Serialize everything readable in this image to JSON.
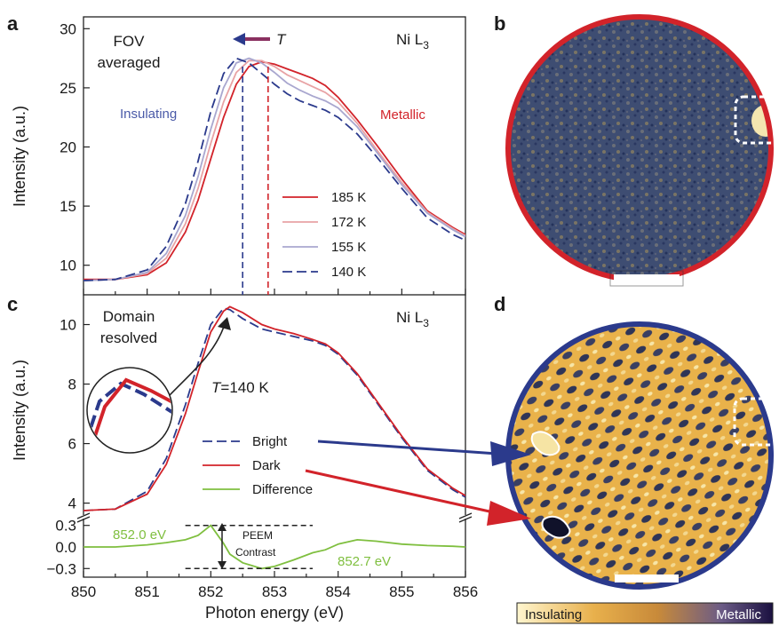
{
  "panel_labels": {
    "a": "a",
    "b": "b",
    "c": "c",
    "d": "d"
  },
  "panel_a": {
    "annotations": {
      "fov_line1": "FOV",
      "fov_line2": "averaged",
      "temp_arrow": "T",
      "edge_pre": "Ni L",
      "edge_sub": "3",
      "insulating": "Insulating",
      "metallic": "Metallic"
    },
    "colors": {
      "185": "#d2232a",
      "172": "#e8a3a5",
      "155": "#a9a7cf",
      "140": "#2b3a8c"
    }
  },
  "panel_c": {
    "annotations": {
      "dom_line1": "Domain",
      "dom_line2": "resolved",
      "edge_pre": "Ni L",
      "edge_sub": "3",
      "temp_pre": "T",
      "temp_rest": "=140 K",
      "peak_left": "852.0 eV",
      "peak_right": "852.7 eV",
      "peem1": "PEEM",
      "peem2": "Contrast"
    },
    "colors": {
      "bright": "#2b3a8c",
      "dark": "#d2232a",
      "difference": "#7fbf3f"
    }
  },
  "colorbar": {
    "left_label": "Insulating",
    "right_label": "Metallic"
  },
  "chart_data": [
    {
      "type": "line",
      "panel": "a",
      "xlim": [
        850,
        856
      ],
      "ylim": [
        7.5,
        31
      ],
      "yticks": [
        10,
        15,
        20,
        25,
        30
      ],
      "ylabel": "Intensity (a.u.)",
      "legend_position": "center-right",
      "x": [
        850.0,
        850.5,
        851.0,
        851.3,
        851.6,
        851.8,
        852.0,
        852.2,
        852.4,
        852.6,
        852.8,
        853.0,
        853.2,
        853.4,
        853.6,
        853.8,
        854.0,
        854.3,
        854.6,
        855.0,
        855.4,
        855.8,
        856.0
      ],
      "series": [
        {
          "name": "185 K",
          "dashed": false,
          "values": [
            8.8,
            8.8,
            9.2,
            10.2,
            12.8,
            15.5,
            19.0,
            22.5,
            25.3,
            26.8,
            27.2,
            27.0,
            26.6,
            26.2,
            25.8,
            25.2,
            24.2,
            22.3,
            20.2,
            17.3,
            14.6,
            13.2,
            12.6
          ]
        },
        {
          "name": "172 K",
          "dashed": false,
          "values": [
            8.7,
            8.8,
            9.3,
            10.6,
            13.5,
            16.5,
            20.3,
            23.8,
            26.3,
            27.3,
            27.3,
            26.8,
            26.1,
            25.6,
            25.1,
            24.6,
            23.8,
            22.0,
            19.8,
            17.0,
            14.5,
            13.1,
            12.5
          ]
        },
        {
          "name": "155 K",
          "dashed": false,
          "values": [
            8.7,
            8.8,
            9.4,
            11.0,
            14.2,
            17.5,
            21.5,
            25.0,
            27.1,
            27.5,
            27.1,
            26.3,
            25.4,
            24.8,
            24.3,
            23.9,
            23.3,
            21.7,
            19.6,
            16.8,
            14.4,
            13.0,
            12.4
          ]
        },
        {
          "name": "140 K",
          "dashed": true,
          "values": [
            8.7,
            8.8,
            9.6,
            11.6,
            15.2,
            18.8,
            23.0,
            26.2,
            27.5,
            27.1,
            26.2,
            25.3,
            24.5,
            23.9,
            23.5,
            23.1,
            22.5,
            21.1,
            19.2,
            16.5,
            14.0,
            12.6,
            12.1
          ]
        }
      ],
      "vlines": [
        {
          "x": 852.5,
          "color": "#2b3a8c"
        },
        {
          "x": 852.9,
          "color": "#d2232a"
        }
      ]
    },
    {
      "type": "line",
      "panel": "c",
      "xlim": [
        850,
        856
      ],
      "xticks": [
        850,
        851,
        852,
        853,
        854,
        855,
        856
      ],
      "xlabel": "Photon energy (eV)",
      "ylabel": "Intensity (a.u.)",
      "upper_ylim": [
        3.6,
        11.0
      ],
      "upper_yticks": [
        4,
        6,
        8,
        10
      ],
      "lower_ylim": [
        -0.42,
        0.42
      ],
      "lower_yticks": [
        0.3,
        0.0,
        -0.3
      ],
      "lower_ytick_labels": [
        "0.3",
        "0.0",
        "−0.3"
      ],
      "legend_position": "center",
      "x": [
        850.0,
        850.5,
        851.0,
        851.3,
        851.6,
        851.8,
        852.0,
        852.2,
        852.3,
        852.5,
        852.8,
        853.0,
        853.3,
        853.6,
        853.8,
        854.0,
        854.3,
        854.6,
        855.0,
        855.4,
        855.8,
        856.0
      ],
      "series": [
        {
          "name": "Bright",
          "dashed": true,
          "values": [
            3.75,
            3.8,
            4.4,
            5.5,
            7.3,
            8.7,
            10.0,
            10.55,
            10.5,
            10.2,
            9.85,
            9.75,
            9.6,
            9.45,
            9.3,
            9.0,
            8.3,
            7.4,
            6.2,
            5.1,
            4.45,
            4.2
          ]
        },
        {
          "name": "Dark",
          "dashed": false,
          "values": [
            3.75,
            3.8,
            4.3,
            5.3,
            7.0,
            8.4,
            9.75,
            10.45,
            10.6,
            10.4,
            10.0,
            9.85,
            9.7,
            9.5,
            9.35,
            9.05,
            8.35,
            7.45,
            6.25,
            5.15,
            4.5,
            4.25
          ]
        },
        {
          "name": "Difference",
          "dashed": false,
          "lower_axis": true,
          "values": [
            0.0,
            0.0,
            0.03,
            0.06,
            0.1,
            0.16,
            0.3,
            0.05,
            -0.1,
            -0.22,
            -0.3,
            -0.27,
            -0.18,
            -0.08,
            -0.04,
            0.04,
            0.1,
            0.08,
            0.04,
            0.02,
            0.01,
            0.0
          ]
        }
      ],
      "dashed_levels": [
        0.3,
        -0.3
      ]
    }
  ]
}
